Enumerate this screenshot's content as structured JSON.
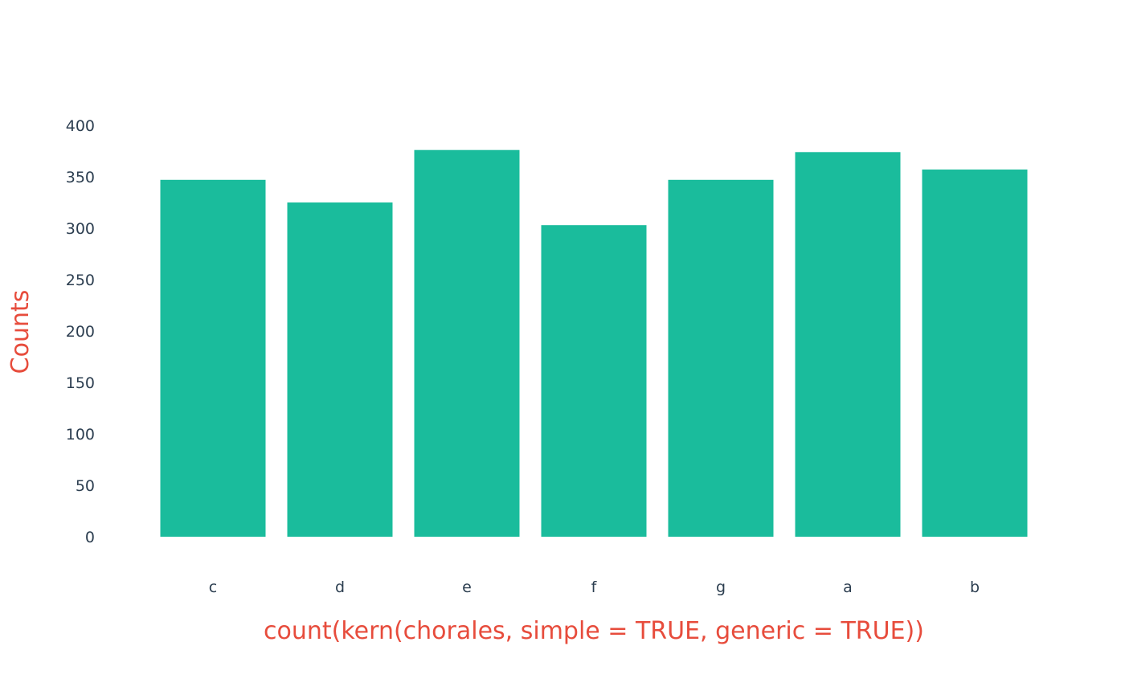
{
  "chart_data": {
    "type": "bar",
    "categories": [
      "c",
      "d",
      "e",
      "f",
      "g",
      "a",
      "b"
    ],
    "values": [
      347,
      325,
      376,
      303,
      347,
      374,
      357
    ],
    "title": "",
    "xlabel": "count(kern(chorales, simple = TRUE, generic = TRUE))",
    "ylabel": "Counts",
    "ylim": [
      0,
      400
    ],
    "yticks": [
      0,
      50,
      100,
      150,
      200,
      250,
      300,
      350,
      400
    ],
    "grid": false,
    "legend": "none",
    "colors": {
      "bar": "#1abc9c",
      "axis_title": "#e74c3c",
      "tick_label": "#2c3e50"
    }
  }
}
